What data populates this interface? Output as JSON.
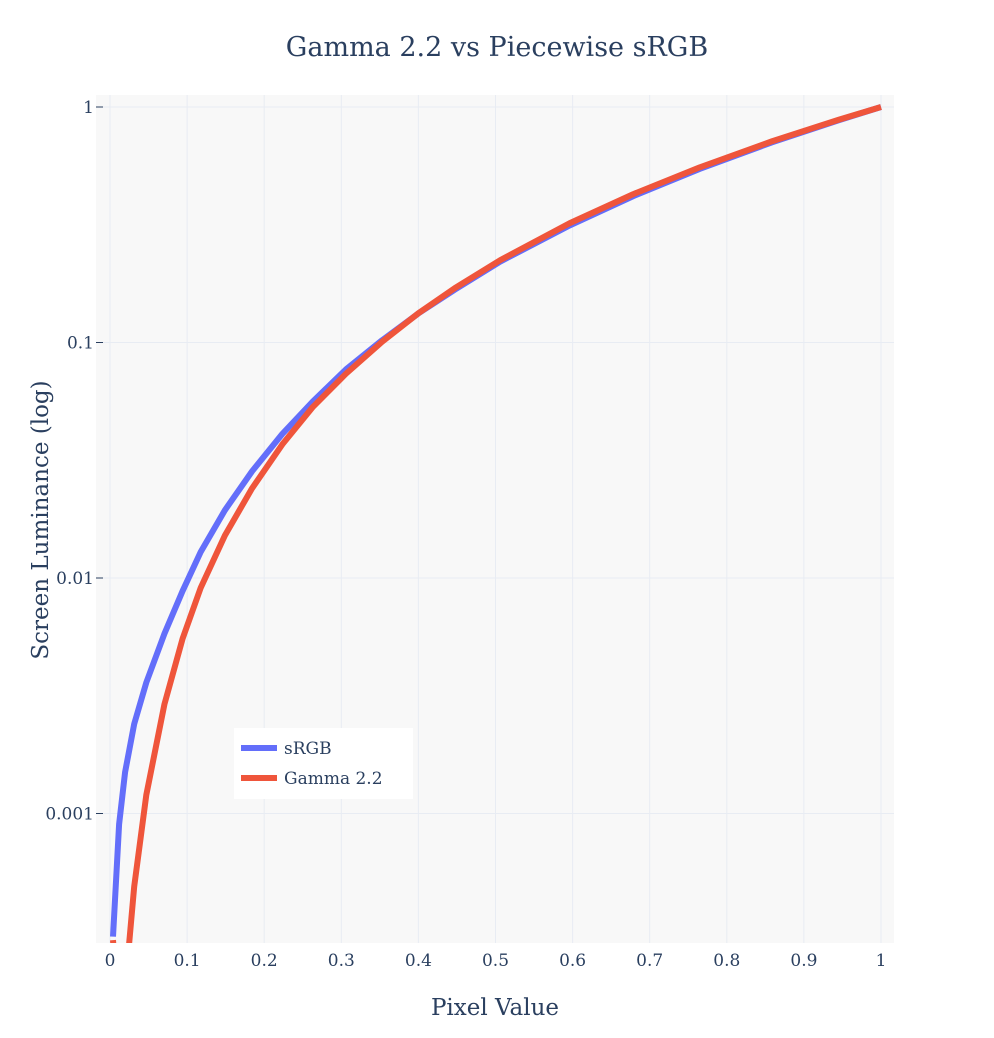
{
  "chart_data": {
    "type": "line",
    "title": "Gamma 2.2 vs Piecewise sRGB",
    "xlabel": "Pixel Value",
    "ylabel": "Screen Luminance (log)",
    "xlim": [
      0,
      1
    ],
    "ylim_log10": [
      -3.5,
      0
    ],
    "y_scale": "log",
    "x_ticks": [
      0,
      0.1,
      0.2,
      0.3,
      0.4,
      0.5,
      0.6,
      0.7,
      0.8,
      0.9,
      1
    ],
    "x_tick_labels": [
      "0",
      "0.1",
      "0.2",
      "0.3",
      "0.4",
      "0.5",
      "0.6",
      "0.7",
      "0.8",
      "0.9",
      "1"
    ],
    "y_ticks": [
      0.001,
      0.01,
      0.1,
      1
    ],
    "y_tick_labels": [
      "0.001",
      "0.01",
      "0.1",
      "1"
    ],
    "grid": true,
    "legend_position": "lower-left inside",
    "colors": {
      "plot_bg": "#f8f8f8",
      "grid": "#e8ecf3",
      "text": "#2a3f5f"
    },
    "x": [
      0.0039,
      0.0118,
      0.0196,
      0.0314,
      0.0471,
      0.0706,
      0.0941,
      0.1176,
      0.149,
      0.1843,
      0.2235,
      0.2627,
      0.3059,
      0.3529,
      0.4,
      0.4471,
      0.5059,
      0.5961,
      0.6784,
      0.7647,
      0.8588,
      0.9451,
      1.0
    ],
    "series": [
      {
        "name": "sRGB",
        "color": "#636efa",
        "values": [
          0.0003,
          0.0009,
          0.0015,
          0.0024,
          0.0036,
          0.0058,
          0.0088,
          0.0129,
          0.0194,
          0.0284,
          0.0409,
          0.056,
          0.0768,
          0.1022,
          0.1329,
          0.1676,
          0.2204,
          0.3139,
          0.4179,
          0.5457,
          0.7084,
          0.8783,
          1.0
        ]
      },
      {
        "name": "Gamma 2.2",
        "color": "#ef553b",
        "values": [
          0.00029,
          0.00013,
          0.00018,
          0.00049,
          0.0012,
          0.00291,
          0.00552,
          0.00908,
          0.01516,
          0.02404,
          0.03692,
          0.05306,
          0.07363,
          0.10074,
          0.13311,
          0.17008,
          0.22349,
          0.32093,
          0.42623,
          0.55404,
          0.71553,
          0.88313,
          1.0
        ]
      }
    ]
  }
}
